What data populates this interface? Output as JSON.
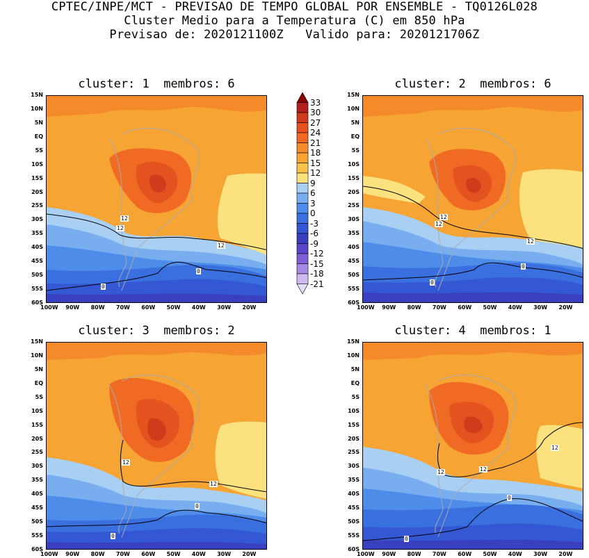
{
  "header": {
    "line1": "CPTEC/INPE/MCT - PREVISAO DE TEMPO GLOBAL POR ENSEMBLE - TQ0126L028",
    "line2": "Cluster Medio para a Temperatura (C) em 850 hPa",
    "line3": "Previsao de: 2020121100Z   Valido para: 2020121706Z"
  },
  "panels": [
    {
      "title": "cluster: 1  membros: 6"
    },
    {
      "title": "cluster: 2  membros: 6"
    },
    {
      "title": "cluster: 3  membros: 2"
    },
    {
      "title": "cluster: 4  membros: 1"
    }
  ],
  "axes": {
    "lat_labels": [
      "15N",
      "10N",
      "5N",
      "EQ",
      "5S",
      "10S",
      "15S",
      "20S",
      "25S",
      "30S",
      "35S",
      "40S",
      "45S",
      "50S",
      "55S",
      "60S"
    ],
    "lon_labels": [
      "100W",
      "90W",
      "80W",
      "70W",
      "60W",
      "50W",
      "40W",
      "30W",
      "20W"
    ]
  },
  "colorbar": {
    "labels": [
      "33",
      "30",
      "27",
      "24",
      "21",
      "18",
      "15",
      "12",
      "9",
      "6",
      "3",
      "0",
      "-3",
      "-6",
      "-9",
      "-12",
      "-15",
      "-18",
      "-21"
    ],
    "colors": [
      "#8b0000",
      "#b21e1e",
      "#cf3c1c",
      "#e3521f",
      "#f06a24",
      "#f48a2a",
      "#f6a534",
      "#f9c24b",
      "#fbe27f",
      "#a9d0f2",
      "#78aef0",
      "#4d8ce8",
      "#3a6fe0",
      "#3457d4",
      "#3a3fc0",
      "#5a44c8",
      "#7e5fd6",
      "#a58ae4",
      "#cdbaf0",
      "#e6dcf7"
    ]
  },
  "contour_labels": {
    "panel1": [
      "12",
      "12",
      "12",
      "0",
      "0"
    ],
    "panel2": [
      "12",
      "12",
      "12",
      "0",
      "0"
    ],
    "panel3": [
      "12",
      "12",
      "0",
      "0"
    ],
    "panel4": [
      "12",
      "12",
      "12",
      "0",
      "0"
    ]
  }
}
